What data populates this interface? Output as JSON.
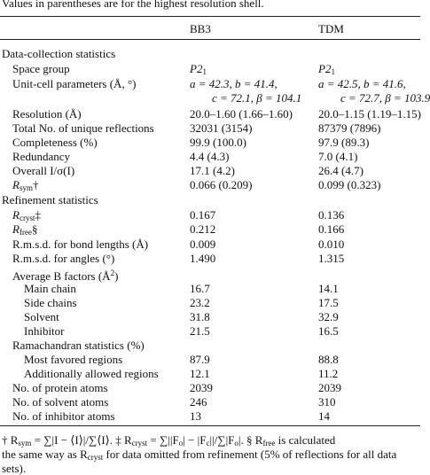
{
  "caption": "Values in parentheses are for the highest resolution shell.",
  "headers": {
    "col1": "",
    "col2": "BB3",
    "col3": "TDM"
  },
  "sections": {
    "data_collection": "Data-collection statistics",
    "refinement": "Refinement statistics"
  },
  "rows": {
    "space_group": {
      "label": "Space group",
      "bb3": "P2",
      "bb3_sub": "1",
      "tdm": "P2",
      "tdm_sub": "1"
    },
    "unit_cell": {
      "label": "Unit-cell parameters (Å, °)",
      "bb3_line1": "a = 42.3, b = 41.4,",
      "bb3_line2": "c = 72.1, β = 104.1",
      "tdm_line1": "a = 42.5, b = 41.6,",
      "tdm_line2": "c = 72.7, β = 103.9"
    },
    "resolution": {
      "label": "Resolution (Å)",
      "bb3": "20.0–1.60 (1.66–1.60)",
      "tdm": "20.0–1.15 (1.19–1.15)"
    },
    "unique_reflections": {
      "label": "Total No. of unique reflections",
      "bb3": "32031 (3154)",
      "tdm": "87379 (7896)"
    },
    "completeness": {
      "label": "Completeness (%)",
      "bb3": "99.9 (100.0)",
      "tdm": "97.9 (89.3)"
    },
    "redundancy": {
      "label": "Redundancy",
      "bb3": "4.4 (4.3)",
      "tdm": "7.0 (4.1)"
    },
    "i_sigma": {
      "label": "Overall I/σ(I)",
      "bb3": "17.1 (4.2)",
      "tdm": "26.4 (4.7)"
    },
    "rsym": {
      "label_main": "R",
      "label_sub": "sym",
      "label_mark": "†",
      "bb3": "0.066 (0.209)",
      "tdm": "0.099 (0.323)"
    },
    "rcryst": {
      "label_main": "R",
      "label_sub": "cryst",
      "label_mark": "‡",
      "bb3": "0.167",
      "tdm": "0.136"
    },
    "rfree": {
      "label_main": "R",
      "label_sub": "free",
      "label_mark": "§",
      "bb3": "0.212",
      "tdm": "0.166"
    },
    "rmsd_bonds": {
      "label": "R.m.s.d. for bond lengths (Å)",
      "bb3": "0.009",
      "tdm": "0.010"
    },
    "rmsd_angles": {
      "label": "R.m.s.d. for angles (°)",
      "bb3": "1.490",
      "tdm": "1.315"
    },
    "avg_b": {
      "label": "Average B factors (Å",
      "label_sup": "2",
      "label_end": ")"
    },
    "main_chain": {
      "label": "Main chain",
      "bb3": "16.7",
      "tdm": "14.1"
    },
    "side_chains": {
      "label": "Side chains",
      "bb3": "23.2",
      "tdm": "17.5"
    },
    "solvent": {
      "label": "Solvent",
      "bb3": "31.8",
      "tdm": "32.9"
    },
    "inhibitor": {
      "label": "Inhibitor",
      "bb3": "21.5",
      "tdm": "16.5"
    },
    "ramachandran": {
      "label": "Ramachandran statistics (%)"
    },
    "most_favored": {
      "label": "Most favored regions",
      "bb3": "87.9",
      "tdm": "88.8"
    },
    "additionally_allowed": {
      "label": "Additionally allowed regions",
      "bb3": "12.1",
      "tdm": "11.2"
    },
    "protein_atoms": {
      "label": "No. of protein atoms",
      "bb3": "2039",
      "tdm": "2039"
    },
    "solvent_atoms": {
      "label": "No. of solvent atoms",
      "bb3": "246",
      "tdm": "310"
    },
    "inhibitor_atoms": {
      "label": "No. of inhibitor atoms",
      "bb3": "13",
      "tdm": "14"
    }
  },
  "footnote": {
    "line1_a": "† R",
    "line1_a_sub": "sym",
    "line1_b": " = ∑|I − ⟨I⟩|/∑⟨I⟩.   ‡ R",
    "line1_b_sub": "cryst",
    "line1_c": " = ∑||F",
    "line1_c_sub1": "o",
    "line1_d": "| − |F",
    "line1_d_sub": "c",
    "line1_e": "||/∑|F",
    "line1_e_sub": "o",
    "line1_f": "|.   § R",
    "line1_f_sub": "free",
    "line1_g": " is calculated",
    "line2_a": "the same way as R",
    "line2_a_sub": "cryst",
    "line2_b": " for data omitted from refinement (5% of reflections for all data",
    "line3": "sets)."
  }
}
